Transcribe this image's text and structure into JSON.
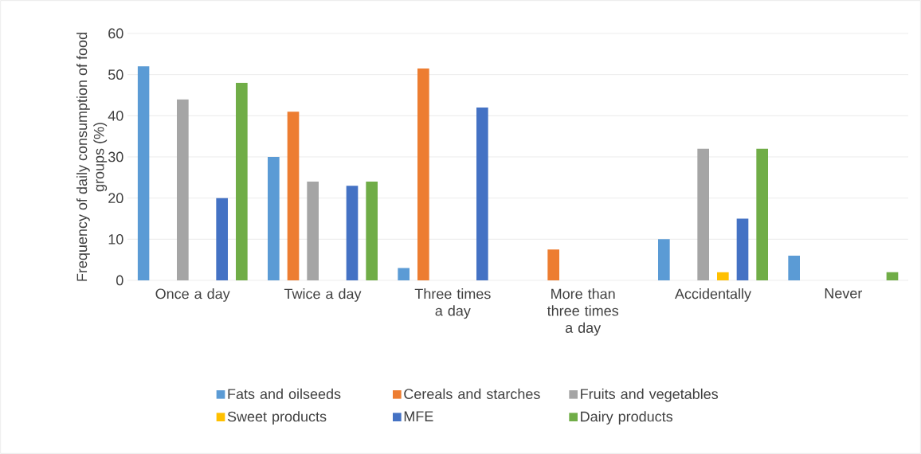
{
  "chart_data": {
    "type": "bar",
    "ylabel": "Frequency of daily consumption of food groups (%)",
    "categories": [
      "Once a day",
      "Twice a day",
      "Three times a day",
      "More than three times a day",
      "Accidentally",
      "Never"
    ],
    "series": [
      {
        "name": "Fats and oilseeds",
        "color": "#5b9bd5",
        "values": [
          52,
          30,
          3,
          0,
          10,
          6
        ]
      },
      {
        "name": "Cereals and starches",
        "color": "#ed7d31",
        "values": [
          0,
          41,
          51.5,
          7.5,
          0,
          0
        ]
      },
      {
        "name": "Fruits and vegetables",
        "color": "#a5a5a5",
        "values": [
          44,
          24,
          0,
          0,
          32,
          0
        ]
      },
      {
        "name": "Sweet products",
        "color": "#ffc000",
        "values": [
          0,
          0,
          0,
          0,
          2,
          0
        ]
      },
      {
        "name": "MFE",
        "color": "#4472c4",
        "values": [
          20,
          23,
          42,
          0,
          15,
          0
        ]
      },
      {
        "name": "Dairy products",
        "color": "#70ad47",
        "values": [
          48,
          24,
          0,
          0,
          32,
          2
        ]
      }
    ],
    "ylim": [
      0,
      60
    ],
    "yticks": [
      0,
      10,
      20,
      30,
      40,
      50,
      60
    ],
    "grid": "y",
    "legend": "bottom"
  }
}
